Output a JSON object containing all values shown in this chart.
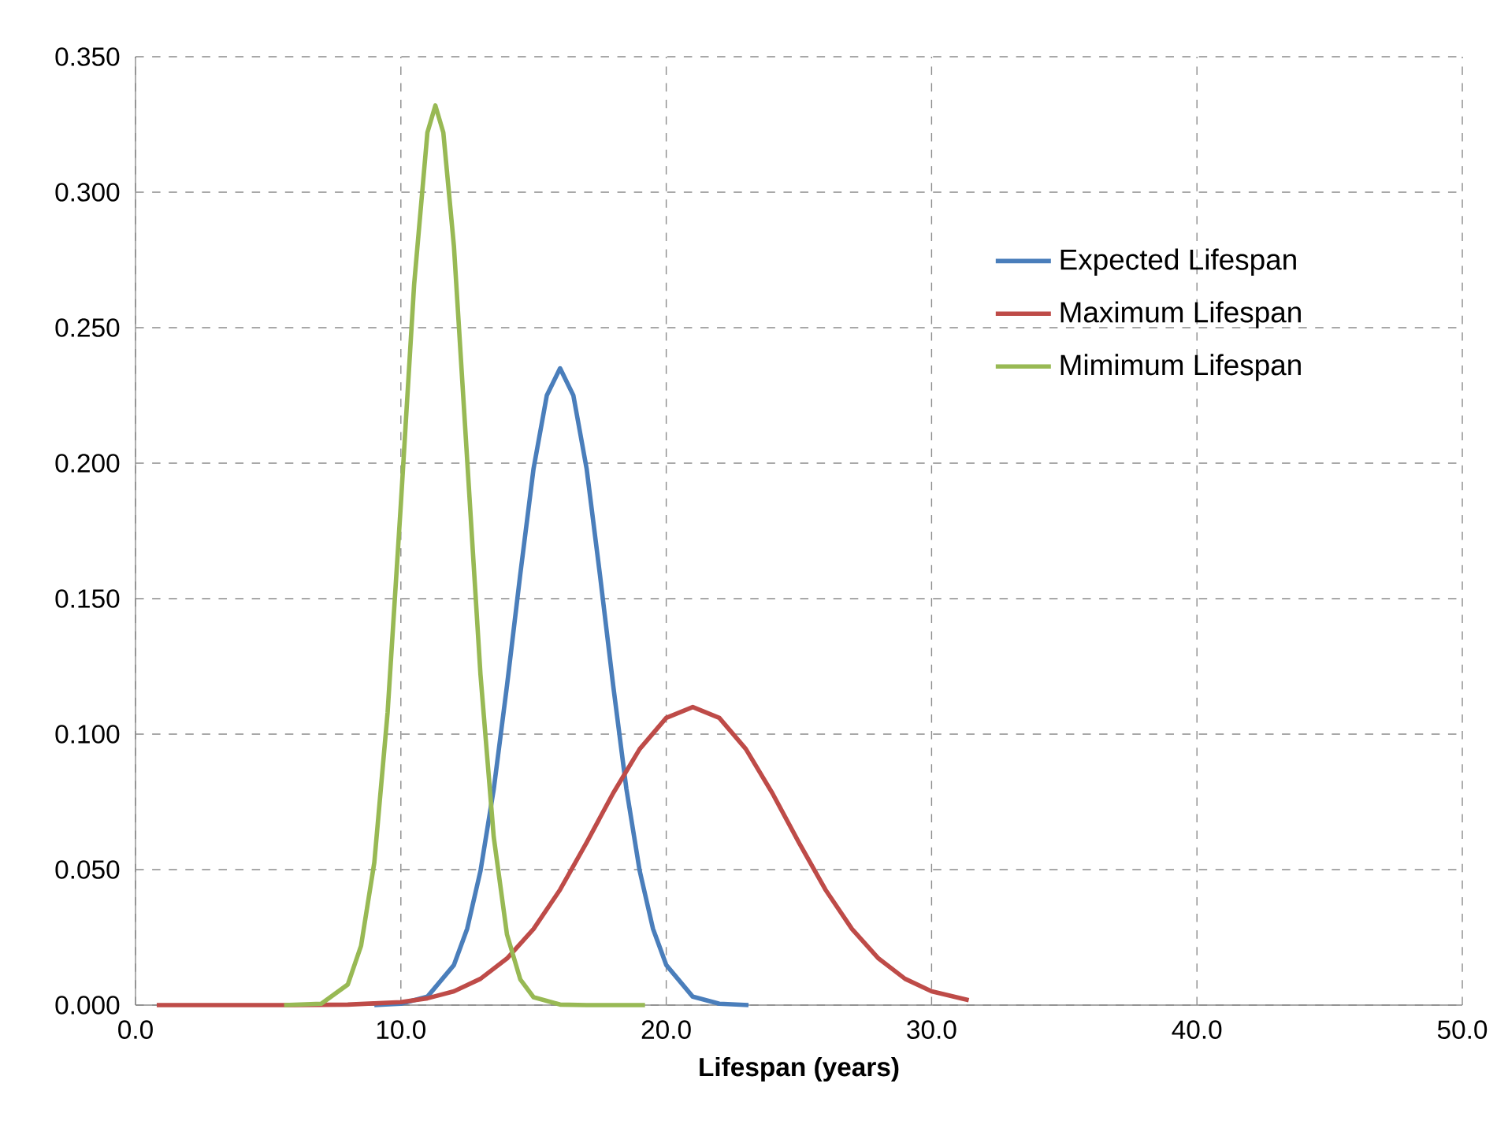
{
  "chart_data": {
    "type": "line",
    "xlabel": "**Lifespan (years)**",
    "xlim": [
      0,
      50
    ],
    "ylim": [
      0,
      0.35
    ],
    "xticks": [
      {
        "value": 0,
        "label": "0.0"
      },
      {
        "value": 10,
        "label": "10.0"
      },
      {
        "value": 20,
        "label": "20.0"
      },
      {
        "value": 30,
        "label": "30.0"
      },
      {
        "value": 40,
        "label": "40.0"
      },
      {
        "value": 50,
        "label": "50.0"
      }
    ],
    "yticks": [
      {
        "value": 0,
        "label": "0.000"
      },
      {
        "value": 0.05,
        "label": "0.050"
      },
      {
        "value": 0.1,
        "label": "0.100"
      },
      {
        "value": 0.15,
        "label": "0.150"
      },
      {
        "value": 0.2,
        "label": "0.200"
      },
      {
        "value": 0.25,
        "label": "0.250"
      },
      {
        "value": 0.3,
        "label": "0.300"
      },
      {
        "value": 0.35,
        "label": "0.350"
      }
    ],
    "grid": true,
    "legend": "right",
    "marker": "none",
    "line_style": "solid",
    "series": [
      {
        "name": "Expected Lifespan",
        "color": "#4a7ebb",
        "x": [
          9,
          10,
          11,
          12,
          12.5,
          13,
          13.5,
          14,
          14.5,
          15,
          15.5,
          16,
          16.5,
          17,
          17.5,
          18,
          18.5,
          19,
          19.5,
          20,
          21,
          22,
          23.1
        ],
        "values": [
          0.0,
          0.0005,
          0.0031,
          0.0148,
          0.0282,
          0.0495,
          0.0797,
          0.118,
          0.159,
          0.198,
          0.225,
          0.235,
          0.225,
          0.198,
          0.159,
          0.118,
          0.0797,
          0.0495,
          0.0282,
          0.0148,
          0.0031,
          0.0005,
          0.0
        ]
      },
      {
        "name": "Maximum Lifespan",
        "color": "#be4b48",
        "x": [
          0.8,
          4,
          6,
          8,
          10,
          11,
          12,
          13,
          14,
          15,
          16,
          17,
          18,
          19,
          20,
          21,
          22,
          23,
          24,
          25,
          26,
          27,
          28,
          29,
          30,
          31.4
        ],
        "values": [
          0.0,
          0.0,
          0.0,
          0.0002,
          0.0011,
          0.0025,
          0.0051,
          0.0097,
          0.0172,
          0.0281,
          0.0426,
          0.06,
          0.0782,
          0.0945,
          0.106,
          0.11,
          0.106,
          0.0945,
          0.0782,
          0.06,
          0.0426,
          0.0281,
          0.0172,
          0.0097,
          0.0051,
          0.0018
        ]
      },
      {
        "name": "Mimimum Lifespan",
        "color": "#98b954",
        "x": [
          5.6,
          7,
          8,
          8.5,
          9,
          9.5,
          10,
          10.5,
          11,
          11.3,
          11.6,
          12,
          12.5,
          13,
          13.5,
          14,
          14.5,
          15,
          16,
          17,
          19.2
        ],
        "values": [
          0.0,
          0.0005,
          0.0076,
          0.0219,
          0.0527,
          0.108,
          0.185,
          0.266,
          0.322,
          0.332,
          0.322,
          0.28,
          0.201,
          0.122,
          0.062,
          0.026,
          0.0095,
          0.0029,
          0.0002,
          0.0,
          0.0
        ]
      }
    ]
  }
}
